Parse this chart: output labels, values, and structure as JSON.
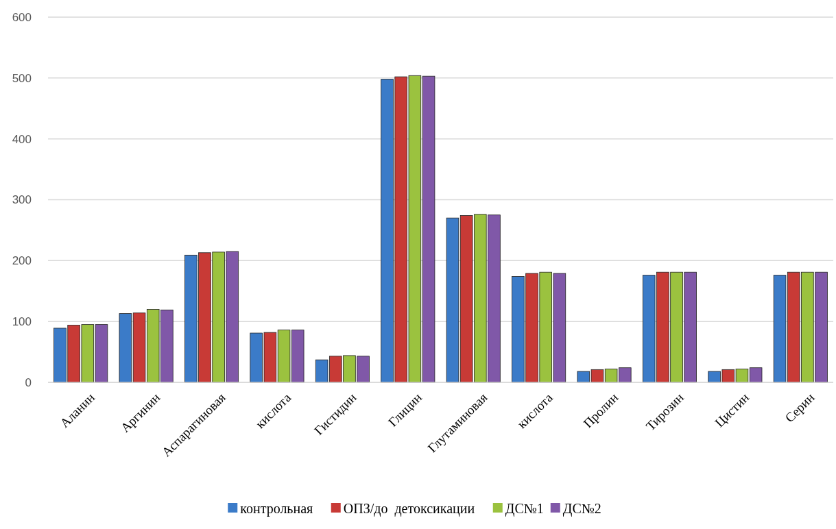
{
  "chart_data": {
    "type": "bar",
    "categories": [
      "Аланин",
      "Аргинин",
      "Аспарагиновая",
      "кислота",
      "Гистидин",
      "Глицин",
      "Глутаминовая",
      "кислота",
      "Пролин",
      "Тирозин",
      "Цистин",
      "Серин"
    ],
    "series": [
      {
        "name": "контрольная",
        "color": "#3b7bc8",
        "values": [
          89,
          113,
          209,
          81,
          37,
          498,
          270,
          174,
          18,
          176,
          18,
          176
        ]
      },
      {
        "name": "ОПЗ/до  детоксикации",
        "color": "#c83a36",
        "values": [
          94,
          114,
          213,
          82,
          43,
          502,
          274,
          179,
          21,
          181,
          21,
          181
        ]
      },
      {
        "name": "ДС№1",
        "color": "#9bc23f",
        "values": [
          95,
          120,
          214,
          86,
          44,
          504,
          276,
          181,
          22,
          181,
          22,
          181
        ]
      },
      {
        "name": "ДС№2",
        "color": "#8058a8",
        "values": [
          95,
          119,
          215,
          86,
          43,
          503,
          275,
          179,
          24,
          181,
          24,
          181
        ]
      }
    ],
    "ylim": [
      0,
      600
    ],
    "yticks": [
      0,
      100,
      200,
      300,
      400,
      500,
      600
    ],
    "grid": "y",
    "legend": "bottom"
  }
}
